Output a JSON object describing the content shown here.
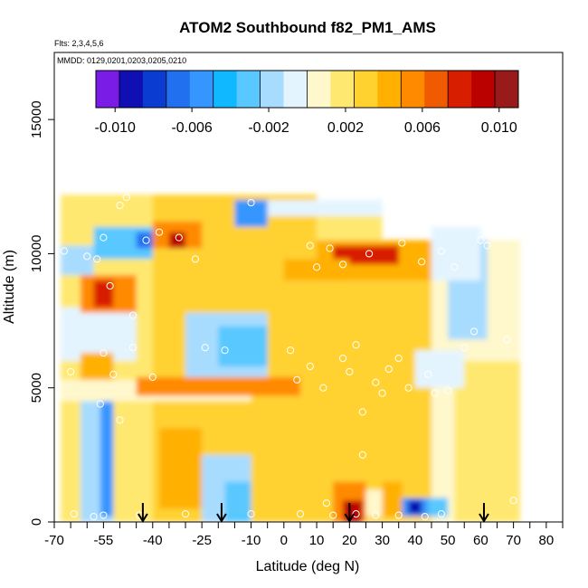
{
  "chart_data": {
    "type": "heatmap",
    "title": "ATOM2 Southbound f82_PM1_AMS",
    "subtitle": "Flts: 2,3,4,5,6",
    "annotation": "MMDD: 0129,0201,0203,0205,0210",
    "xlabel": "Latitude (deg N)",
    "ylabel": "Altitude (m)",
    "xlim": [
      -70,
      85
    ],
    "ylim": [
      0,
      17500
    ],
    "x_ticks": [
      -70,
      -55,
      -40,
      -25,
      -10,
      0,
      10,
      20,
      30,
      40,
      50,
      60,
      70,
      80
    ],
    "x_tick_labels": [
      "-70",
      "-55",
      "-40",
      "-25",
      "-10",
      "0",
      "10",
      "20",
      "30",
      "40",
      "50",
      "60",
      "70",
      "80"
    ],
    "y_ticks": [
      0,
      5000,
      10000,
      15000
    ],
    "y_tick_labels": [
      "0",
      "5000",
      "10000",
      "15000"
    ],
    "colorbar": {
      "range": [
        -0.011,
        0.011
      ],
      "tick_values": [
        -0.01,
        -0.006,
        -0.002,
        0.002,
        0.006,
        0.01
      ],
      "tick_labels": [
        "-0.010",
        "-0.006",
        "-0.002",
        "0.002",
        "0.006",
        "0.010"
      ],
      "colors": [
        "#7a1ce6",
        "#0f0fb4",
        "#0a3cd2",
        "#2070f0",
        "#3596ff",
        "#10b8ff",
        "#58c8ff",
        "#a8dcff",
        "#e4f4ff",
        "#fff8cc",
        "#ffe870",
        "#ffd230",
        "#ffb000",
        "#ff8a00",
        "#f05a00",
        "#d81e00",
        "#bb0000",
        "#991a1a"
      ]
    },
    "background_value": 0.002,
    "patches": [
      {
        "x": [
          -68,
          -40
        ],
        "y": [
          0,
          12200
        ],
        "v": 0.0018
      },
      {
        "x": [
          -40,
          10
        ],
        "y": [
          0,
          12200
        ],
        "v": 0.0026
      },
      {
        "x": [
          10,
          45
        ],
        "y": [
          0,
          10500
        ],
        "v": 0.003
      },
      {
        "x": [
          45,
          72
        ],
        "y": [
          0,
          10500
        ],
        "v": 0.0012
      },
      {
        "x": [
          -62,
          -52
        ],
        "y": [
          0,
          4800
        ],
        "v": -0.0018
      },
      {
        "x": [
          -56,
          -52
        ],
        "y": [
          200,
          4500
        ],
        "v": -0.006
      },
      {
        "x": [
          -38,
          -25
        ],
        "y": [
          500,
          3500
        ],
        "v": 0.004
      },
      {
        "x": [
          -25,
          -10
        ],
        "y": [
          0,
          2500
        ],
        "v": -0.0015
      },
      {
        "x": [
          -18,
          -10
        ],
        "y": [
          0,
          1500
        ],
        "v": -0.003
      },
      {
        "x": [
          -8,
          3
        ],
        "y": [
          0,
          3000
        ],
        "v": 0.0035
      },
      {
        "x": [
          15,
          25
        ],
        "y": [
          0,
          1500
        ],
        "v": 0.006
      },
      {
        "x": [
          18,
          24
        ],
        "y": [
          0,
          800
        ],
        "v": 0.009
      },
      {
        "x": [
          25,
          30
        ],
        "y": [
          200,
          1200
        ],
        "v": 0.0012
      },
      {
        "x": [
          30,
          36
        ],
        "y": [
          200,
          1500
        ],
        "v": 0.0045
      },
      {
        "x": [
          36,
          44
        ],
        "y": [
          200,
          900
        ],
        "v": -0.006
      },
      {
        "x": [
          38,
          42
        ],
        "y": [
          300,
          800
        ],
        "v": -0.009
      },
      {
        "x": [
          44,
          50
        ],
        "y": [
          200,
          900
        ],
        "v": -0.0025
      },
      {
        "x": [
          52,
          72
        ],
        "y": [
          0,
          6000
        ],
        "v": 0.0015
      },
      {
        "x": [
          10,
          35
        ],
        "y": [
          3500,
          8000
        ],
        "v": 0.0035
      },
      {
        "x": [
          -68,
          -10
        ],
        "y": [
          4500,
          5300
        ],
        "v": 0.0012
      },
      {
        "x": [
          -45,
          5
        ],
        "y": [
          4700,
          5400
        ],
        "v": 0.0058
      },
      {
        "x": [
          -30,
          -5
        ],
        "y": [
          5400,
          7800
        ],
        "v": -0.0015
      },
      {
        "x": [
          -20,
          -5
        ],
        "y": [
          5800,
          7300
        ],
        "v": -0.0035
      },
      {
        "x": [
          -68,
          -45
        ],
        "y": [
          6000,
          8000
        ],
        "v": -0.0008
      },
      {
        "x": [
          -62,
          -52
        ],
        "y": [
          5300,
          6300
        ],
        "v": 0.0045
      },
      {
        "x": [
          -62,
          -45
        ],
        "y": [
          7800,
          9200
        ],
        "v": 0.005
      },
      {
        "x": [
          -58,
          -52
        ],
        "y": [
          8000,
          9000
        ],
        "v": 0.0085
      },
      {
        "x": [
          -68,
          -58
        ],
        "y": [
          9200,
          10300
        ],
        "v": -0.002
      },
      {
        "x": [
          -58,
          -40
        ],
        "y": [
          9800,
          11000
        ],
        "v": -0.0025
      },
      {
        "x": [
          -45,
          -38
        ],
        "y": [
          10200,
          10800
        ],
        "v": -0.007
      },
      {
        "x": [
          -40,
          -25
        ],
        "y": [
          10200,
          11200
        ],
        "v": 0.006
      },
      {
        "x": [
          -35,
          -30
        ],
        "y": [
          10200,
          10800
        ],
        "v": 0.009
      },
      {
        "x": [
          -15,
          -5
        ],
        "y": [
          11000,
          12000
        ],
        "v": -0.006
      },
      {
        "x": [
          -5,
          30
        ],
        "y": [
          11400,
          12000
        ],
        "v": -0.0008
      },
      {
        "x": [
          10,
          45
        ],
        "y": [
          9000,
          10500
        ],
        "v": 0.0045
      },
      {
        "x": [
          15,
          35
        ],
        "y": [
          9600,
          10300
        ],
        "v": 0.0075
      },
      {
        "x": [
          50,
          62
        ],
        "y": [
          6800,
          10500
        ],
        "v": -0.0015
      },
      {
        "x": [
          45,
          60
        ],
        "y": [
          9000,
          11000
        ],
        "v": -0.0008
      },
      {
        "x": [
          40,
          55
        ],
        "y": [
          5000,
          6400
        ],
        "v": -0.0012
      },
      {
        "x": [
          0,
          20
        ],
        "y": [
          9000,
          9800
        ],
        "v": 0.004
      }
    ],
    "points": [
      {
        "x": -60,
        "y": 9900
      },
      {
        "x": -57,
        "y": 9800
      },
      {
        "x": -55,
        "y": 10600
      },
      {
        "x": -53,
        "y": 8800
      },
      {
        "x": -50,
        "y": 11800
      },
      {
        "x": -48,
        "y": 12100
      },
      {
        "x": -46,
        "y": 7700
      },
      {
        "x": -42,
        "y": 10500
      },
      {
        "x": -38,
        "y": 10800
      },
      {
        "x": -32,
        "y": 10600
      },
      {
        "x": -27,
        "y": 9800
      },
      {
        "x": -67,
        "y": 10100
      },
      {
        "x": -65,
        "y": 5600
      },
      {
        "x": -55,
        "y": 6300
      },
      {
        "x": -52,
        "y": 5500
      },
      {
        "x": -46,
        "y": 6500
      },
      {
        "x": -40,
        "y": 5400
      },
      {
        "x": -24,
        "y": 6500
      },
      {
        "x": -18,
        "y": 6400
      },
      {
        "x": -10,
        "y": 11900
      },
      {
        "x": 2,
        "y": 6400
      },
      {
        "x": 4,
        "y": 5300
      },
      {
        "x": 8,
        "y": 5800
      },
      {
        "x": 12,
        "y": 5000
      },
      {
        "x": 14,
        "y": 10200
      },
      {
        "x": 18,
        "y": 6100
      },
      {
        "x": 18,
        "y": 9600
      },
      {
        "x": 20,
        "y": 5600
      },
      {
        "x": 22,
        "y": 6600
      },
      {
        "x": 24,
        "y": 4100
      },
      {
        "x": 26,
        "y": 10000
      },
      {
        "x": 28,
        "y": 5200
      },
      {
        "x": 30,
        "y": 4800
      },
      {
        "x": 32,
        "y": 5700
      },
      {
        "x": 35,
        "y": 6100
      },
      {
        "x": 36,
        "y": 10400
      },
      {
        "x": 38,
        "y": 5000
      },
      {
        "x": 42,
        "y": 9700
      },
      {
        "x": 44,
        "y": 5500
      },
      {
        "x": 46,
        "y": 4800
      },
      {
        "x": 48,
        "y": 10100
      },
      {
        "x": 50,
        "y": 4900
      },
      {
        "x": 52,
        "y": 9500
      },
      {
        "x": 55,
        "y": 6500
      },
      {
        "x": 58,
        "y": 7100
      },
      {
        "x": 60,
        "y": 10500
      },
      {
        "x": 62,
        "y": 10300
      },
      {
        "x": 68,
        "y": 6800
      },
      {
        "x": 8,
        "y": 10300
      },
      {
        "x": 10,
        "y": 9500
      },
      {
        "x": -64,
        "y": 300
      },
      {
        "x": -58,
        "y": 200
      },
      {
        "x": -55,
        "y": 250
      },
      {
        "x": -44,
        "y": 250
      },
      {
        "x": -30,
        "y": 300
      },
      {
        "x": -10,
        "y": 300
      },
      {
        "x": 5,
        "y": 300
      },
      {
        "x": 15,
        "y": 250
      },
      {
        "x": 22,
        "y": 300
      },
      {
        "x": 28,
        "y": 250
      },
      {
        "x": 35,
        "y": 250
      },
      {
        "x": 43,
        "y": 200
      },
      {
        "x": 48,
        "y": 300
      },
      {
        "x": 70,
        "y": 800
      },
      {
        "x": -56,
        "y": 4400
      },
      {
        "x": 24,
        "y": 2500
      },
      {
        "x": 13,
        "y": 700
      },
      {
        "x": -50,
        "y": 3800
      }
    ],
    "arrows_x": [
      -43,
      -19,
      20,
      61
    ]
  }
}
